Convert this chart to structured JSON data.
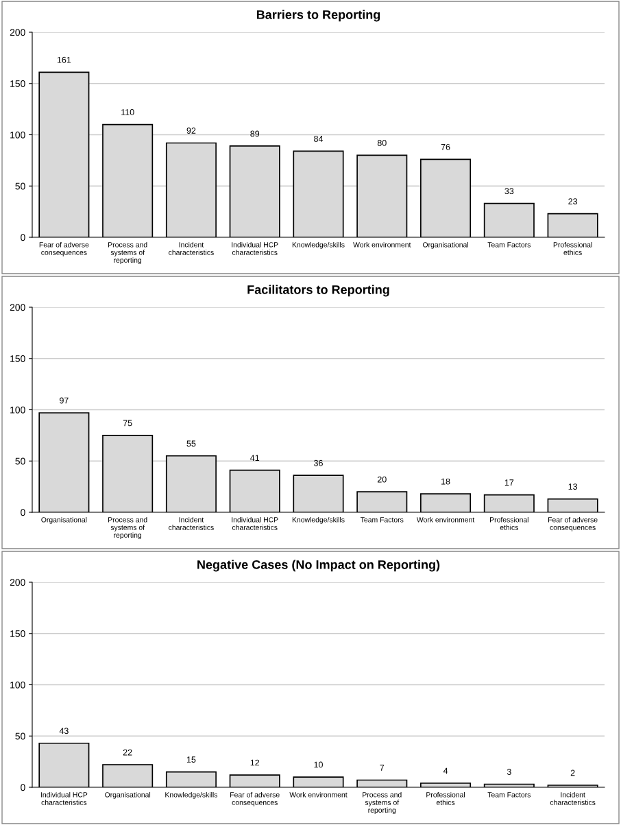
{
  "chart_data": [
    {
      "type": "bar",
      "title": "Barriers to Reporting",
      "categories": [
        "Fear of adverse consequences",
        "Process and systems of reporting",
        "Incident characteristics",
        "Individual HCP characteristics",
        "Knowledge/skills",
        "Work environment",
        "Organisational",
        "Team Factors",
        "Professional ethics"
      ],
      "values": [
        161,
        110,
        92,
        89,
        84,
        80,
        76,
        33,
        23
      ],
      "color": "#d9d9d9",
      "ylim": [
        0,
        200
      ],
      "yticks": [
        0,
        50,
        100,
        150,
        200
      ],
      "grid": "y",
      "data_labels": true
    },
    {
      "type": "bar",
      "title": "Facilitators to Reporting",
      "categories": [
        "Organisational",
        "Process and systems of reporting",
        "Incident characteristics",
        "Individual HCP characteristics",
        "Knowledge/skills",
        "Team Factors",
        "Work environment",
        "Professional ethics",
        "Fear of adverse consequences"
      ],
      "values": [
        97,
        75,
        55,
        41,
        36,
        20,
        18,
        17,
        13
      ],
      "color": "#d9d9d9",
      "ylim": [
        0,
        200
      ],
      "yticks": [
        0,
        50,
        100,
        150,
        200
      ],
      "grid": "y",
      "data_labels": true
    },
    {
      "type": "bar",
      "title": "Negative Cases (No Impact on Reporting)",
      "categories": [
        "Individual HCP characteristics",
        "Organisational",
        "Knowledge/skills",
        "Fear of adverse consequences",
        "Work environment",
        "Process and systems of reporting",
        "Professional ethics",
        "Team Factors",
        "Incident characteristics"
      ],
      "values": [
        43,
        22,
        15,
        12,
        10,
        7,
        4,
        3,
        2
      ],
      "color": "#d9d9d9",
      "ylim": [
        0,
        200
      ],
      "yticks": [
        0,
        50,
        100,
        150,
        200
      ],
      "grid": "y",
      "data_labels": true
    }
  ]
}
